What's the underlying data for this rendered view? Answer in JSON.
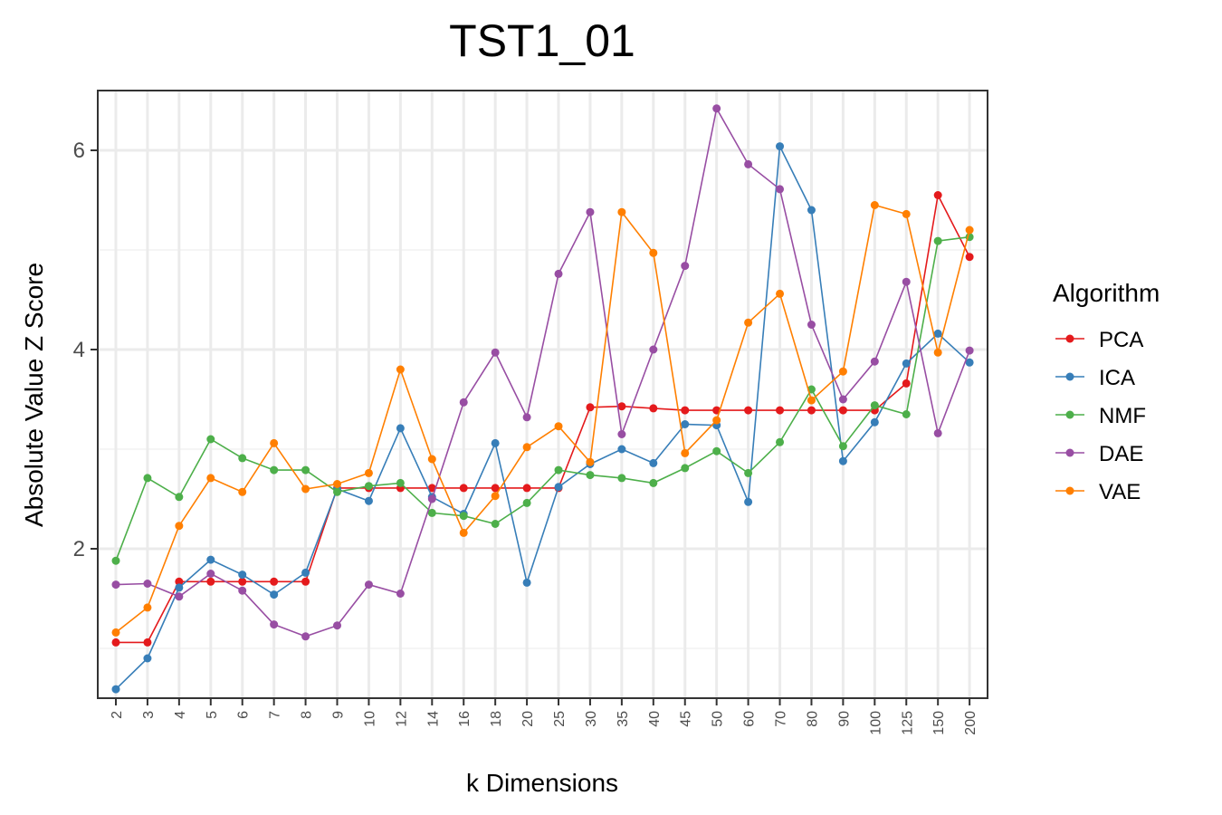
{
  "chart_data": {
    "type": "line",
    "title": "TST1_01",
    "xlabel": "k Dimensions",
    "ylabel": "Absolute Value Z Score",
    "categories": [
      "2",
      "3",
      "4",
      "5",
      "6",
      "7",
      "8",
      "9",
      "10",
      "12",
      "14",
      "16",
      "18",
      "20",
      "25",
      "30",
      "35",
      "40",
      "45",
      "50",
      "60",
      "70",
      "80",
      "90",
      "100",
      "125",
      "150",
      "200"
    ],
    "ylim": [
      0.5,
      6.6
    ],
    "yticks": [
      2,
      4,
      6
    ],
    "grid": true,
    "legend_title": "Algorithm",
    "legend_position": "right",
    "series": [
      {
        "name": "PCA",
        "color": "#e41a1c",
        "values": [
          1.06,
          1.06,
          1.67,
          1.67,
          1.67,
          1.67,
          1.67,
          2.61,
          2.61,
          2.61,
          2.61,
          2.61,
          2.61,
          2.61,
          2.61,
          3.42,
          3.43,
          3.41,
          3.39,
          3.39,
          3.39,
          3.39,
          3.39,
          3.39,
          3.39,
          3.66,
          5.55,
          4.93
        ]
      },
      {
        "name": "ICA",
        "color": "#377eb8",
        "values": [
          0.59,
          0.9,
          1.61,
          1.89,
          1.74,
          1.54,
          1.76,
          2.6,
          2.48,
          3.21,
          2.52,
          2.35,
          3.06,
          1.66,
          2.62,
          2.85,
          3.0,
          2.86,
          3.25,
          3.24,
          2.47,
          6.04,
          5.4,
          2.88,
          3.27,
          3.86,
          4.16,
          3.87
        ]
      },
      {
        "name": "NMF",
        "color": "#4daf4a",
        "values": [
          1.88,
          2.71,
          2.52,
          3.1,
          2.91,
          2.79,
          2.79,
          2.57,
          2.63,
          2.66,
          2.36,
          2.33,
          2.25,
          2.46,
          2.79,
          2.74,
          2.71,
          2.66,
          2.81,
          2.98,
          2.76,
          3.07,
          3.6,
          3.03,
          3.44,
          3.35,
          5.09,
          5.13
        ]
      },
      {
        "name": "DAE",
        "color": "#984ea3",
        "values": [
          1.64,
          1.65,
          1.52,
          1.75,
          1.58,
          1.24,
          1.12,
          1.23,
          1.64,
          1.55,
          2.5,
          3.47,
          3.97,
          3.32,
          4.76,
          5.38,
          3.15,
          4.0,
          4.84,
          6.42,
          5.86,
          5.61,
          4.25,
          3.5,
          3.88,
          4.68,
          3.16,
          3.99
        ]
      },
      {
        "name": "VAE",
        "color": "#ff7f00",
        "values": [
          1.16,
          1.41,
          2.23,
          2.71,
          2.57,
          3.06,
          2.6,
          2.65,
          2.76,
          3.8,
          2.9,
          2.16,
          2.53,
          3.02,
          3.23,
          2.87,
          5.38,
          4.97,
          2.96,
          3.29,
          4.27,
          4.56,
          3.49,
          3.78,
          5.45,
          5.36,
          3.97,
          5.2
        ]
      }
    ]
  }
}
